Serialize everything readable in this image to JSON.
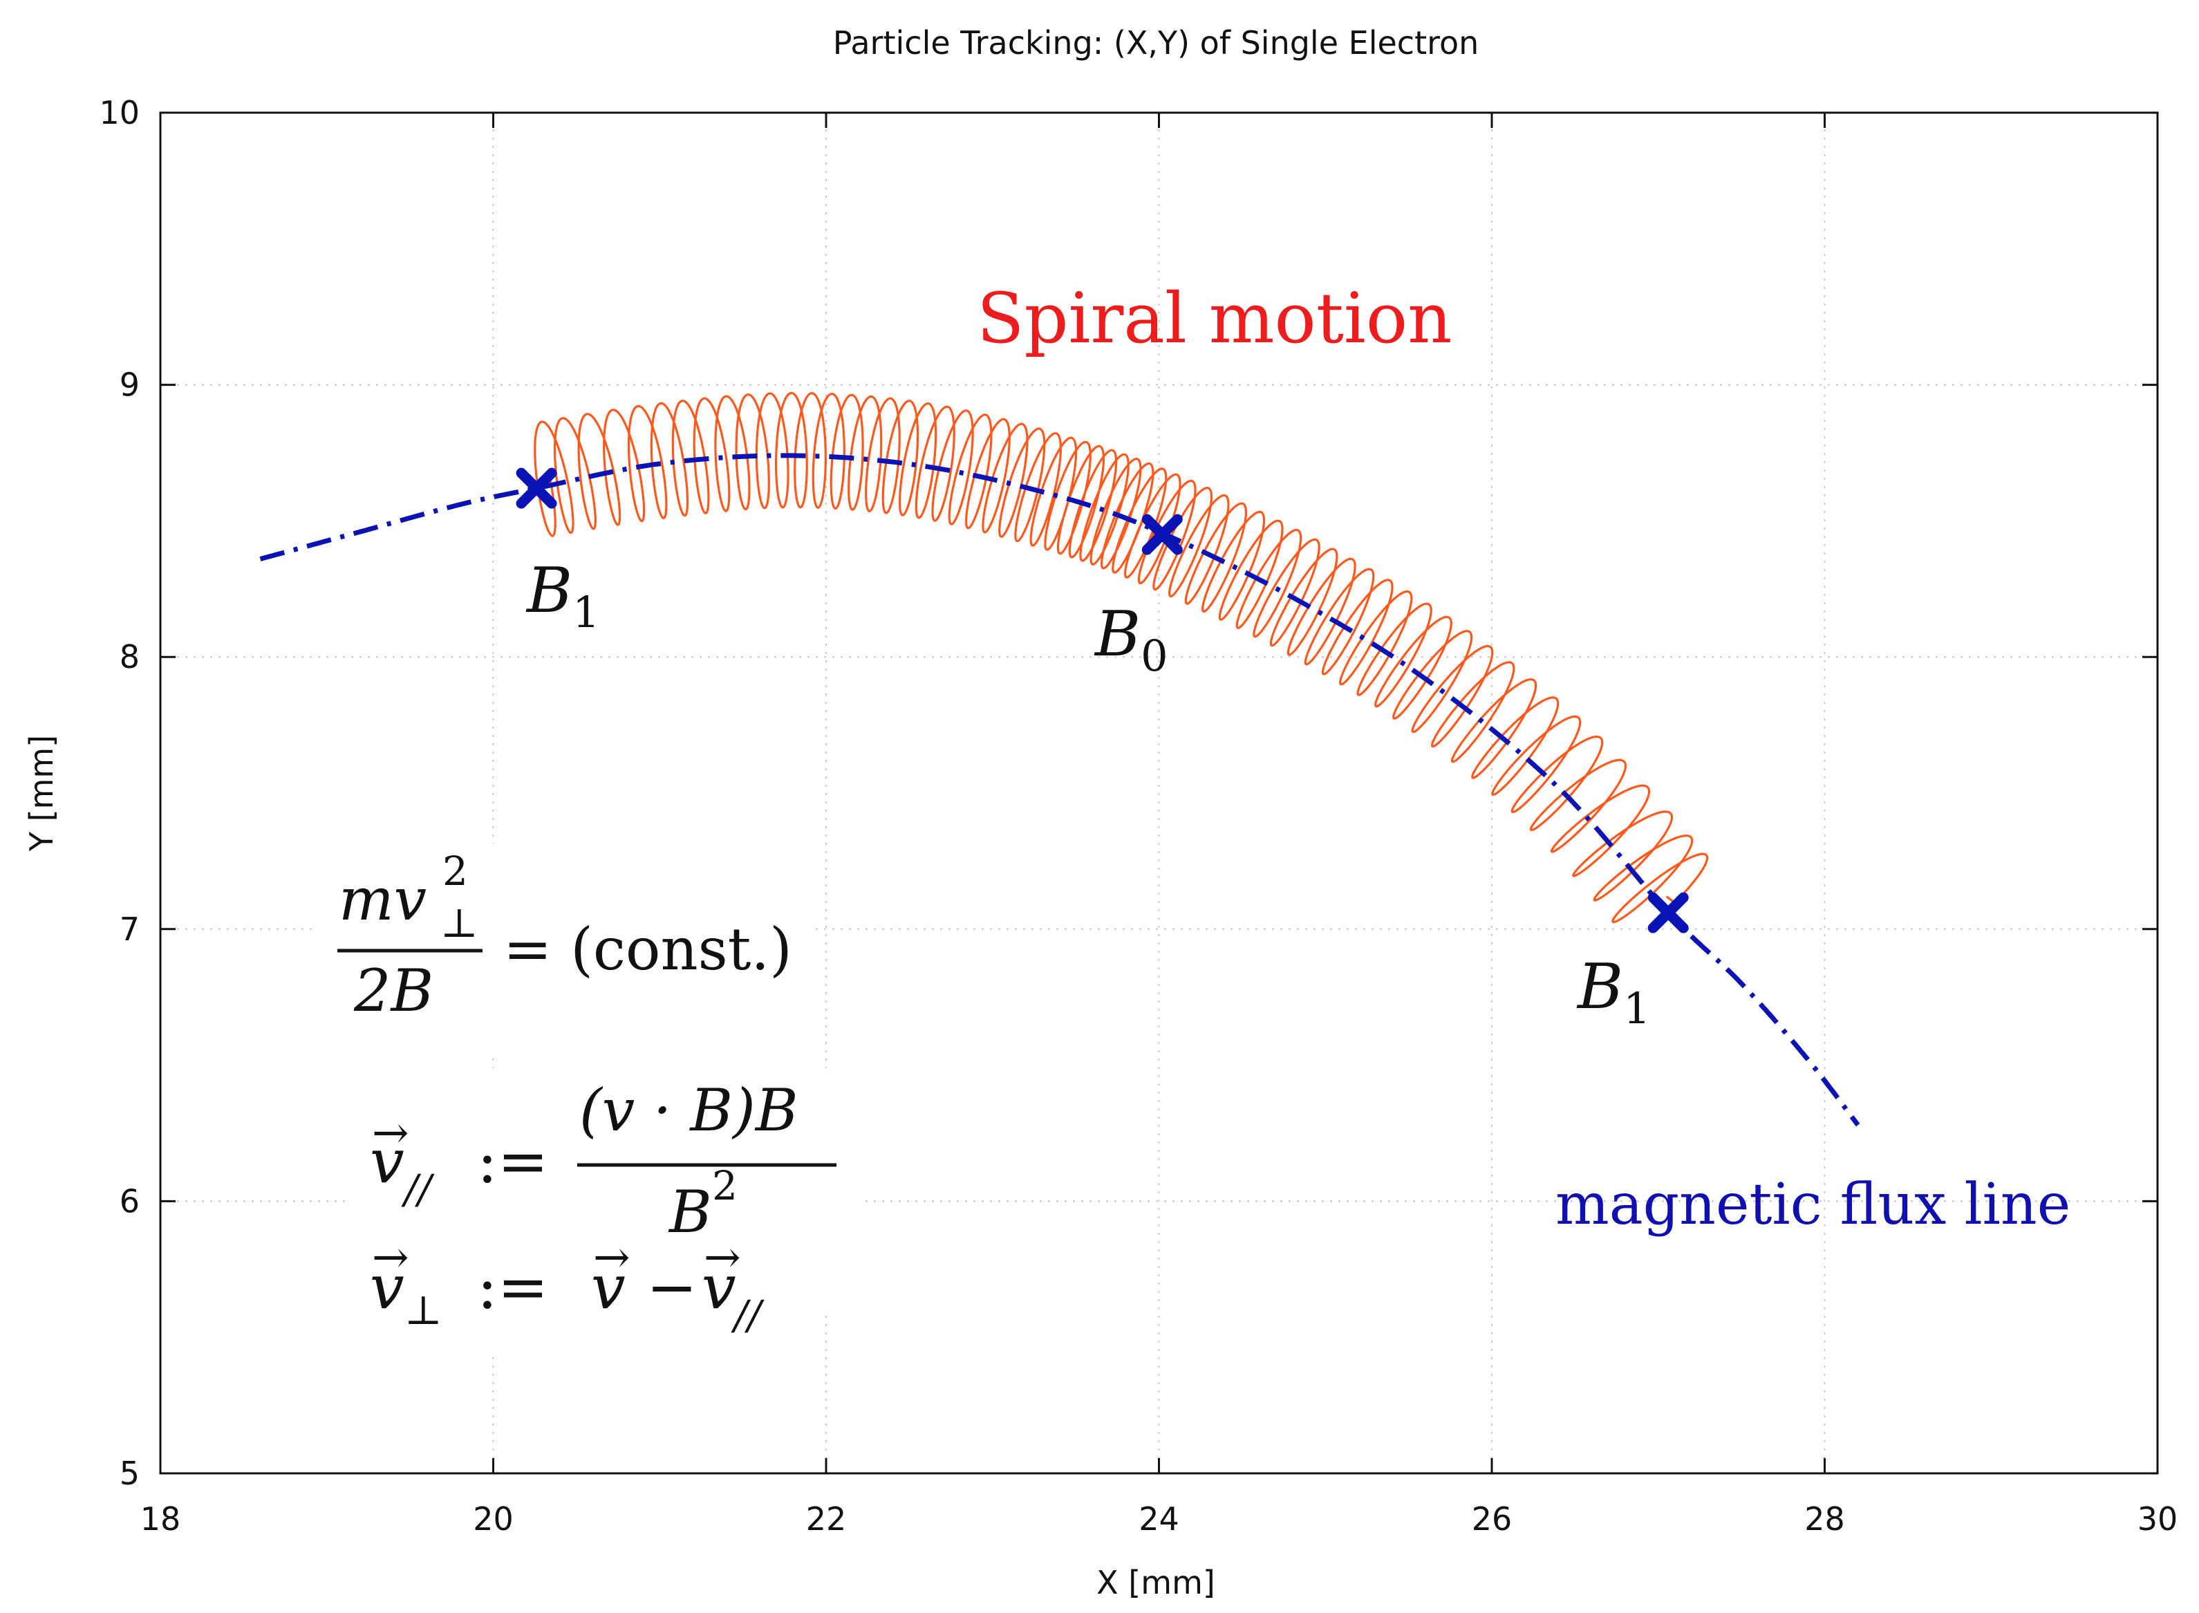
{
  "chart_data": {
    "type": "line",
    "title": "Particle Tracking: (X,Y) of Single Electron",
    "xlabel": "X [mm]",
    "ylabel": "Y [mm]",
    "xlim": [
      18,
      30
    ],
    "ylim": [
      5,
      10
    ],
    "xticks": [
      "18",
      "20",
      "22",
      "24",
      "26",
      "28",
      "30"
    ],
    "yticks": [
      "5",
      "6",
      "7",
      "8",
      "9",
      "10"
    ],
    "grid": true,
    "series": [
      {
        "name": "magnetic flux line",
        "style": "dash-dot",
        "color": "#0a14b4",
        "x": [
          18.6,
          19.2,
          19.8,
          20.26,
          21.0,
          21.8,
          22.6,
          23.4,
          24.0,
          24.8,
          25.6,
          26.4,
          27.06,
          27.5,
          27.9,
          28.2
        ],
        "y": [
          8.36,
          8.46,
          8.56,
          8.62,
          8.71,
          8.74,
          8.7,
          8.59,
          8.46,
          8.22,
          7.92,
          7.52,
          7.06,
          6.8,
          6.52,
          6.28
        ]
      },
      {
        "name": "Spiral motion",
        "style": "spiral",
        "color": "#ff5a1e",
        "guiding_center_x": [
          20.28,
          21.0,
          21.8,
          22.6,
          23.4,
          24.0,
          24.8,
          25.6,
          26.4,
          27.05
        ],
        "guiding_center_y": [
          8.65,
          8.72,
          8.76,
          8.72,
          8.6,
          8.47,
          8.24,
          7.95,
          7.56,
          7.12
        ],
        "gyro_radius_y": 0.21
      }
    ],
    "markers": [
      {
        "label_base": "B",
        "label_sub": "1",
        "x": 20.26,
        "y": 8.62
      },
      {
        "label_base": "B",
        "label_sub": "0",
        "x": 24.02,
        "y": 8.45
      },
      {
        "label_base": "B",
        "label_sub": "1",
        "x": 27.06,
        "y": 7.06
      }
    ],
    "annotations": {
      "spiral_label": "Spiral motion",
      "flux_label": "magnetic flux line"
    },
    "equations": {
      "eq1_num_base": "mv",
      "eq1_num_sup": "2",
      "eq1_num_sub": "⊥",
      "eq1_den": "2B",
      "eq1_rhs": "= (const.)",
      "eq2_lhs": "v",
      "eq2_lhs_sub": "//",
      "eq2_assign": ":=",
      "eq2_num": "(v · B)B",
      "eq2_den_base": "B",
      "eq2_den_sup": "2",
      "eq3_lhs": "v",
      "eq3_lhs_sub": "⊥",
      "eq3_rhs_a": "v",
      "eq3_minus": "−",
      "eq3_rhs_b": "v",
      "eq3_rhs_b_sub": "//"
    },
    "colors": {
      "spiral": "#ff5a1e",
      "flux": "#0a14b4",
      "marker": "#0a14b4",
      "spiral_text": "#ee1c1c",
      "flux_text": "#1010b0"
    }
  }
}
